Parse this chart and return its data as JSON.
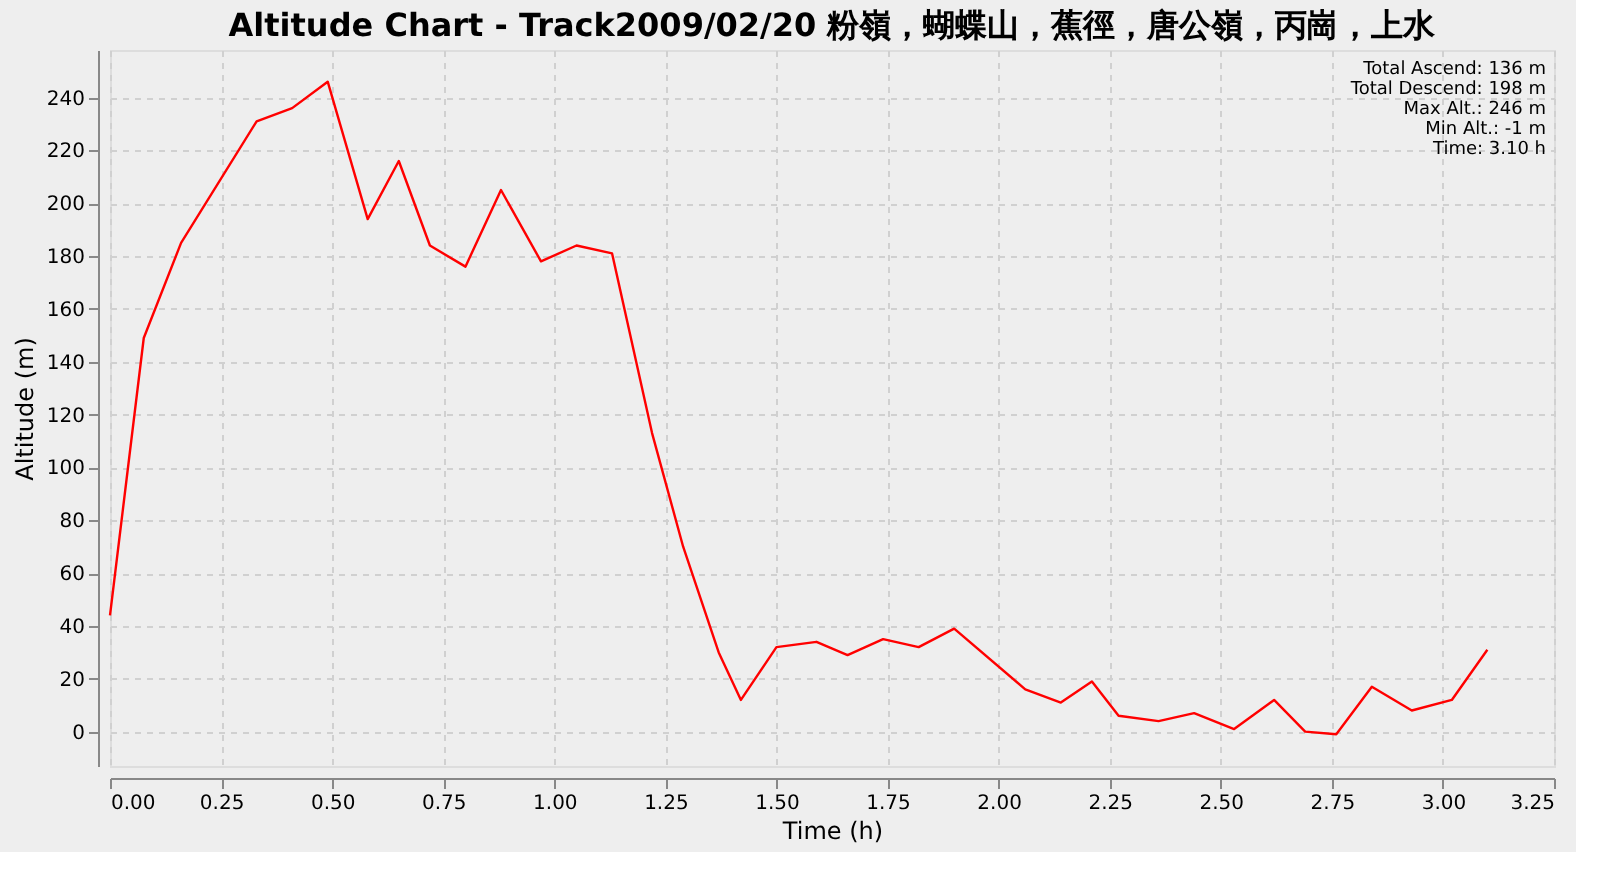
{
  "chart_data": {
    "type": "line",
    "title": "Altitude Chart - Track2009/02/20 粉嶺，蝴蝶山，蕉徑，唐公嶺，丙崗，上水",
    "xlabel": "Time (h)",
    "ylabel": "Altitude (m)",
    "annotations": [
      "Total Ascend: 136 m",
      "Total Descend: 198 m",
      "Max Alt.: 246 m",
      "Min Alt.: -1 m",
      "Time: 3.10 h"
    ],
    "x": [
      0,
      0.076,
      0.16,
      0.33,
      0.41,
      0.49,
      0.58,
      0.65,
      0.72,
      0.8,
      0.88,
      0.97,
      1.05,
      1.13,
      1.22,
      1.29,
      1.37,
      1.42,
      1.5,
      1.59,
      1.66,
      1.74,
      1.82,
      1.9,
      2.06,
      2.14,
      2.21,
      2.27,
      2.36,
      2.44,
      2.53,
      2.62,
      2.69,
      2.76,
      2.84,
      2.93,
      3.02,
      3.1
    ],
    "series": [
      {
        "color": "#ff0000",
        "values": [
          44,
          149,
          185,
          231,
          236,
          246,
          194,
          216,
          184,
          176,
          205,
          178,
          184,
          181,
          113,
          70,
          30,
          12,
          32,
          34,
          29,
          35,
          32,
          39,
          16,
          11,
          19,
          6,
          4,
          7,
          1,
          12,
          0,
          -1,
          17,
          8,
          12,
          31
        ]
      }
    ],
    "xlim": [
      0,
      3.25
    ],
    "ylim": [
      -13,
      258
    ],
    "xticks": [
      {
        "value": 0,
        "label": "0.00"
      },
      0.25,
      {
        "value": 0.5,
        "label": "0.50"
      },
      0.75,
      {
        "value": 1,
        "label": "1.00"
      },
      1.25,
      {
        "value": 1.5,
        "label": "1.50"
      },
      1.75,
      {
        "value": 2,
        "label": "2.00"
      },
      2.25,
      {
        "value": 2.5,
        "label": "2.50"
      },
      2.75,
      {
        "value": 3,
        "label": "3.00"
      },
      3.25
    ],
    "yticks": [
      0,
      20,
      40,
      60,
      80,
      100,
      120,
      140,
      160,
      180,
      200,
      220,
      240
    ],
    "grid": true,
    "marker": "none",
    "line_style": "solid"
  }
}
